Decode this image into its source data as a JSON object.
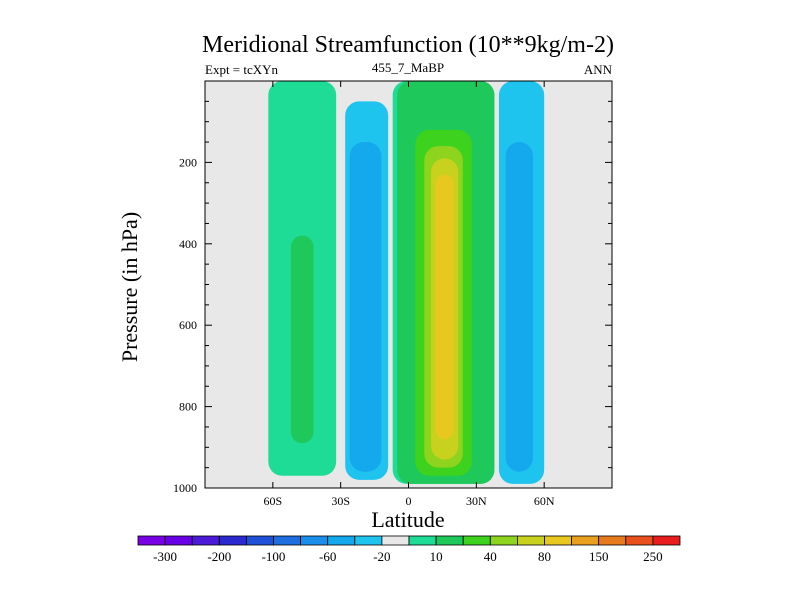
{
  "chart_data": {
    "type": "heatmap",
    "title": "Meridional Streamfunction (10**9kg/m-2)",
    "subtitle_left": "Expt = tcXYn",
    "subtitle_center": "455_7_MaBP",
    "subtitle_right": "ANN",
    "xlabel": "Latitude",
    "ylabel": "Pressure (in hPa)",
    "xlim": [
      -90,
      90
    ],
    "ylim": [
      1000,
      0
    ],
    "x_ticks": [
      {
        "value": -60,
        "label": "60S"
      },
      {
        "value": -30,
        "label": "30S"
      },
      {
        "value": 0,
        "label": "0"
      },
      {
        "value": 30,
        "label": "30N"
      },
      {
        "value": 60,
        "label": "60N"
      }
    ],
    "y_ticks": [
      {
        "value": 200,
        "label": "200"
      },
      {
        "value": 400,
        "label": "400"
      },
      {
        "value": 600,
        "label": "600"
      },
      {
        "value": 800,
        "label": "800"
      },
      {
        "value": 1000,
        "label": "1000"
      }
    ],
    "background_color": "#e8e8e8",
    "levels": [
      -300,
      -250,
      -200,
      -150,
      -100,
      -80,
      -60,
      -40,
      -20,
      -10,
      10,
      20,
      40,
      60,
      80,
      100,
      150,
      200,
      250,
      300
    ],
    "level_colors": [
      "#7a00e6",
      "#6a00e6",
      "#4a1ad8",
      "#2a2ad0",
      "#1e50d8",
      "#1e6ee0",
      "#1a8ee8",
      "#14a8ec",
      "#1ec4ee",
      "#e8e8e8",
      "#1edc96",
      "#1ec85a",
      "#3cd21e",
      "#8ed41e",
      "#c8d21e",
      "#e8c81e",
      "#e8a01e",
      "#e87a1e",
      "#e8501e",
      "#e81e1e"
    ],
    "colorbar_labels": [
      {
        "index": 1,
        "label": "-300"
      },
      {
        "index": 3,
        "label": "-200"
      },
      {
        "index": 5,
        "label": "-100"
      },
      {
        "index": 7,
        "label": "-60"
      },
      {
        "index": 9,
        "label": "-20"
      },
      {
        "index": 11,
        "label": "10"
      },
      {
        "index": 13,
        "label": "40"
      },
      {
        "index": 15,
        "label": "80"
      },
      {
        "index": 17,
        "label": "150"
      },
      {
        "index": 19,
        "label": "250"
      }
    ],
    "cells": [
      {
        "level_range": [
          10,
          20
        ],
        "color": "#1edc96",
        "lat_range": [
          -62,
          -32
        ],
        "p_range": [
          0,
          970
        ]
      },
      {
        "level_range": [
          20,
          40
        ],
        "color": "#1ec85a",
        "lat_range": [
          -52,
          -42
        ],
        "p_range": [
          380,
          890
        ]
      },
      {
        "level_range": [
          -20,
          -10
        ],
        "color": "#1ec4ee",
        "lat_range": [
          -28,
          -9
        ],
        "p_range": [
          50,
          980
        ]
      },
      {
        "level_range": [
          -40,
          -20
        ],
        "color": "#14a8ec",
        "lat_range": [
          -26,
          -12
        ],
        "p_range": [
          150,
          960
        ]
      },
      {
        "level_range": [
          10,
          20
        ],
        "color": "#1edc96",
        "lat_range": [
          -7,
          38
        ],
        "p_range": [
          0,
          990
        ]
      },
      {
        "level_range": [
          20,
          40
        ],
        "color": "#1ec85a",
        "lat_range": [
          -5,
          38
        ],
        "p_range": [
          0,
          990
        ]
      },
      {
        "level_range": [
          40,
          60
        ],
        "color": "#3cd21e",
        "lat_range": [
          3,
          28
        ],
        "p_range": [
          120,
          970
        ]
      },
      {
        "level_range": [
          60,
          80
        ],
        "color": "#8ed41e",
        "lat_range": [
          7,
          24
        ],
        "p_range": [
          160,
          950
        ]
      },
      {
        "level_range": [
          80,
          100
        ],
        "color": "#c8d21e",
        "lat_range": [
          10,
          22
        ],
        "p_range": [
          190,
          930
        ]
      },
      {
        "level_range": [
          100,
          150
        ],
        "color": "#e8c81e",
        "lat_range": [
          12,
          20
        ],
        "p_range": [
          230,
          880
        ]
      },
      {
        "level_range": [
          -20,
          -10
        ],
        "color": "#1ec4ee",
        "lat_range": [
          40,
          60
        ],
        "p_range": [
          0,
          990
        ]
      },
      {
        "level_range": [
          -40,
          -20
        ],
        "color": "#14a8ec",
        "lat_range": [
          43,
          55
        ],
        "p_range": [
          150,
          960
        ]
      }
    ]
  }
}
